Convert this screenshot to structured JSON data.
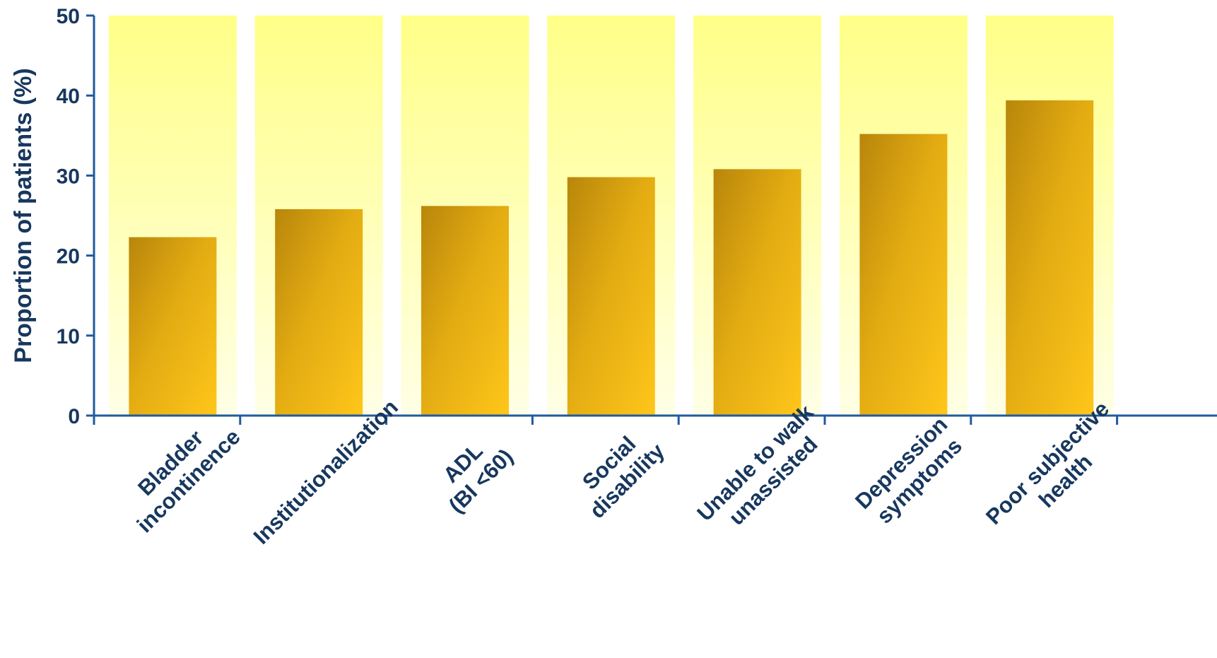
{
  "chart_data": {
    "type": "bar",
    "title": "",
    "xlabel": "",
    "ylabel": "Proportion of patients (%)",
    "ylim": [
      0,
      50
    ],
    "yticks": [
      0,
      10,
      20,
      30,
      40,
      50
    ],
    "grid": false,
    "legend": "none",
    "categories": [
      [
        "Bladder",
        "incontinence"
      ],
      [
        "Institutionalization"
      ],
      [
        "ADL",
        "(BI <60)"
      ],
      [
        "Social",
        "disability"
      ],
      [
        "Unable to walk",
        "unassisted"
      ],
      [
        "Depression",
        "symptoms"
      ],
      [
        "Poor subjective",
        "health"
      ]
    ],
    "values": [
      22.3,
      25.8,
      26.2,
      29.8,
      30.8,
      35.2,
      39.4
    ],
    "background_values": [
      50,
      50,
      50,
      50,
      50,
      50,
      50
    ],
    "colors": {
      "bar_dark": "#b8860b",
      "bar_light": "#ffc61a",
      "background_top": "#ffff88",
      "background_bottom": "#ffffe6",
      "axis": "#1f5aa0",
      "text": "#17375e"
    }
  }
}
